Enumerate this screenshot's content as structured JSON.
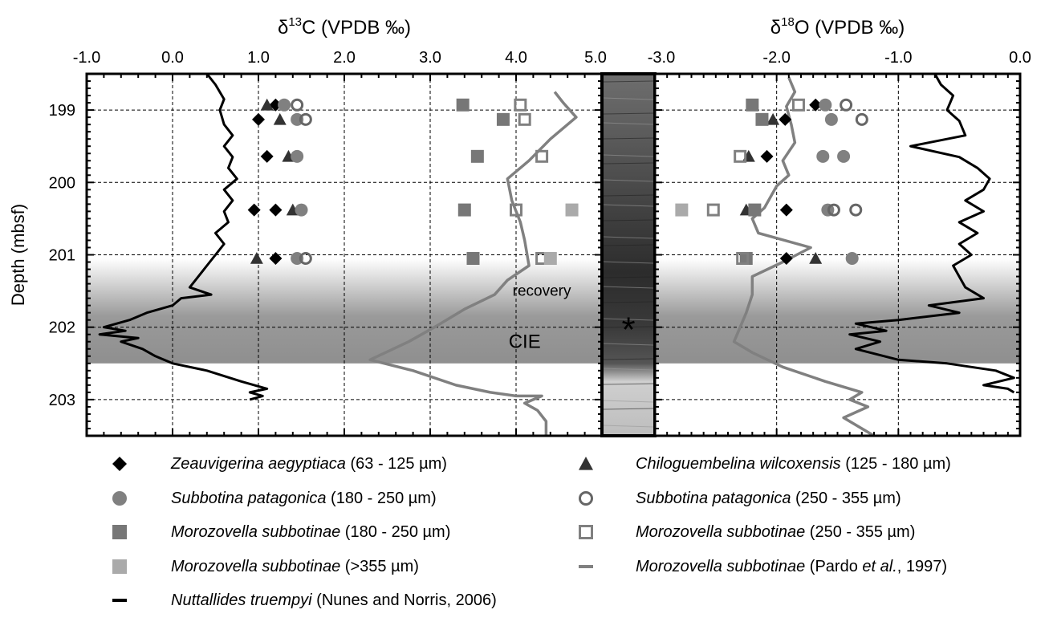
{
  "chart_data": [
    {
      "type": "scatter",
      "panel": "d13C",
      "title": "δ¹³C (VPDB ‰)",
      "title_main": "δ",
      "title_sup": "13",
      "title_rest": "C (VPDB ‰)",
      "ylabel": "Depth (mbsf)",
      "xlim": [
        -1.0,
        5.0
      ],
      "ylim": [
        198.5,
        203.5
      ],
      "x_ticks": [
        -1.0,
        0.0,
        1.0,
        2.0,
        3.0,
        4.0,
        5.0
      ],
      "x_tick_labels": [
        "-1.0",
        "0.0",
        "1.0",
        "2.0",
        "3.0",
        "4.0",
        "5.0"
      ],
      "y_ticks": [
        199,
        200,
        201,
        202,
        203
      ],
      "y_tick_labels": [
        "199",
        "200",
        "201",
        "202",
        "203"
      ],
      "grid": true,
      "annotations": [
        {
          "text": "recovery",
          "x": 4.3,
          "y": 201.5
        },
        {
          "text": "CIE",
          "x": 4.1,
          "y": 202.2
        }
      ],
      "series": [
        {
          "name": "Zeauvigerina aegyptiaca (63 - 125 µm)",
          "marker": "diamond",
          "color": "#000000",
          "points": [
            [
              1.2,
              198.93
            ],
            [
              1.0,
              199.13
            ],
            [
              1.1,
              199.64
            ],
            [
              0.95,
              200.38
            ],
            [
              1.2,
              200.38
            ],
            [
              1.2,
              201.05
            ]
          ]
        },
        {
          "name": "Chiloguembelina wilcoxensis (125 - 180 µm)",
          "marker": "triangle",
          "color": "#333333",
          "points": [
            [
              1.1,
              198.93
            ],
            [
              1.25,
              199.13
            ],
            [
              1.35,
              199.64
            ],
            [
              1.4,
              200.38
            ],
            [
              0.98,
              201.05
            ]
          ]
        },
        {
          "name": "Subbotina patagonica (180 - 250 µm)",
          "marker": "circle",
          "color": "#808080",
          "points": [
            [
              1.3,
              198.93
            ],
            [
              1.45,
              199.13
            ],
            [
              1.45,
              199.64
            ],
            [
              1.5,
              200.38
            ],
            [
              1.45,
              201.05
            ]
          ]
        },
        {
          "name": "Subbotina patagonica (250 - 355 µm)",
          "marker": "circle-open",
          "color": "#666666",
          "points": [
            [
              1.45,
              198.93
            ],
            [
              1.55,
              199.13
            ],
            [
              1.55,
              201.05
            ]
          ]
        },
        {
          "name": "Morozovella subbotinae (180 - 250 µm)",
          "marker": "square",
          "color": "#777777",
          "points": [
            [
              3.38,
              198.93
            ],
            [
              3.85,
              199.13
            ],
            [
              3.55,
              199.64
            ],
            [
              3.4,
              200.38
            ],
            [
              3.5,
              201.05
            ]
          ]
        },
        {
          "name": "Morozovella subbotinae (250 - 355 µm)",
          "marker": "square-open",
          "color": "#808080",
          "points": [
            [
              4.05,
              198.93
            ],
            [
              4.1,
              199.13
            ],
            [
              4.3,
              199.64
            ],
            [
              4.0,
              200.38
            ],
            [
              4.3,
              201.05
            ]
          ]
        },
        {
          "name": "Morozovella subbotinae (>355 µm)",
          "marker": "square",
          "color": "#aaaaaa",
          "points": [
            [
              4.65,
              200.38
            ],
            [
              4.4,
              201.05
            ]
          ]
        },
        {
          "name": "Morozovella subbotinae (Pardo et al., 1997)",
          "marker": "line",
          "color": "#808080",
          "points": [
            [
              4.45,
              198.75
            ],
            [
              4.55,
              198.9
            ],
            [
              4.7,
              199.1
            ],
            [
              4.4,
              199.4
            ],
            [
              4.15,
              199.7
            ],
            [
              3.9,
              199.95
            ],
            [
              3.95,
              200.25
            ],
            [
              4.05,
              200.55
            ],
            [
              4.1,
              200.8
            ],
            [
              4.15,
              201.15
            ],
            [
              3.9,
              201.35
            ],
            [
              3.75,
              201.55
            ],
            [
              3.4,
              201.75
            ],
            [
              3.05,
              202.0
            ],
            [
              2.75,
              202.2
            ],
            [
              2.3,
              202.45
            ],
            [
              2.8,
              202.6
            ],
            [
              3.3,
              202.8
            ],
            [
              3.7,
              202.9
            ],
            [
              4.0,
              202.95
            ],
            [
              4.3,
              202.95
            ],
            [
              4.1,
              203.05
            ],
            [
              4.25,
              203.15
            ],
            [
              4.35,
              203.3
            ],
            [
              4.35,
              203.5
            ]
          ]
        },
        {
          "name": "Nuttallides truempyi (Nunes and Norris, 2006)",
          "marker": "line",
          "color": "#000000",
          "points": [
            [
              0.4,
              198.5
            ],
            [
              0.5,
              198.65
            ],
            [
              0.6,
              198.85
            ],
            [
              0.55,
              199.0
            ],
            [
              0.6,
              199.2
            ],
            [
              0.7,
              199.35
            ],
            [
              0.6,
              199.5
            ],
            [
              0.7,
              199.65
            ],
            [
              0.65,
              199.8
            ],
            [
              0.75,
              199.95
            ],
            [
              0.6,
              200.1
            ],
            [
              0.7,
              200.25
            ],
            [
              0.6,
              200.4
            ],
            [
              0.65,
              200.55
            ],
            [
              0.5,
              200.7
            ],
            [
              0.6,
              200.85
            ],
            [
              0.5,
              201.0
            ],
            [
              0.4,
              201.15
            ],
            [
              0.3,
              201.3
            ],
            [
              0.2,
              201.45
            ],
            [
              0.45,
              201.55
            ],
            [
              0.1,
              201.6
            ],
            [
              0.0,
              201.7
            ],
            [
              -0.3,
              201.8
            ],
            [
              -0.5,
              201.9
            ],
            [
              -0.8,
              202.0
            ],
            [
              -0.55,
              202.05
            ],
            [
              -0.85,
              202.1
            ],
            [
              -0.4,
              202.15
            ],
            [
              -0.6,
              202.2
            ],
            [
              -0.35,
              202.3
            ],
            [
              -0.2,
              202.4
            ],
            [
              0.0,
              202.5
            ],
            [
              0.4,
              202.6
            ],
            [
              0.8,
              202.75
            ],
            [
              1.1,
              202.85
            ],
            [
              0.9,
              202.9
            ],
            [
              1.05,
              202.95
            ],
            [
              0.9,
              203.0
            ]
          ]
        }
      ]
    },
    {
      "type": "scatter",
      "panel": "d18O",
      "title": "δ¹⁸O (VPDB ‰)",
      "title_main": "δ",
      "title_sup": "18",
      "title_rest": "O (VPDB ‰)",
      "xlim": [
        -3.0,
        0.0
      ],
      "ylim": [
        198.5,
        203.5
      ],
      "x_ticks": [
        -3.0,
        -2.0,
        -1.0,
        0.0
      ],
      "x_tick_labels": [
        "-3.0",
        "-2.0",
        "-1.0",
        "0.0"
      ],
      "grid": true,
      "annotations": [
        {
          "text": "*",
          "x": -3.35,
          "y": 202.0
        }
      ],
      "series": [
        {
          "name": "Zeauvigerina aegyptiaca (63 - 125 µm)",
          "marker": "diamond",
          "color": "#000000",
          "points": [
            [
              -1.68,
              198.93
            ],
            [
              -1.93,
              199.13
            ],
            [
              -2.08,
              199.64
            ],
            [
              -1.92,
              200.38
            ],
            [
              -1.92,
              201.05
            ]
          ]
        },
        {
          "name": "Chiloguembelina wilcoxensis (125 - 180 µm)",
          "marker": "triangle",
          "color": "#333333",
          "points": [
            [
              -2.03,
              199.13
            ],
            [
              -2.23,
              199.64
            ],
            [
              -2.25,
              200.38
            ],
            [
              -1.68,
              201.05
            ]
          ]
        },
        {
          "name": "Subbotina patagonica (180 - 250 µm)",
          "marker": "circle",
          "color": "#808080",
          "points": [
            [
              -1.6,
              198.93
            ],
            [
              -1.55,
              199.13
            ],
            [
              -1.62,
              199.64
            ],
            [
              -1.45,
              199.64
            ],
            [
              -1.58,
              200.38
            ],
            [
              -1.38,
              201.05
            ]
          ]
        },
        {
          "name": "Subbotina patagonica (250 - 355 µm)",
          "marker": "circle-open",
          "color": "#666666",
          "points": [
            [
              -1.43,
              198.93
            ],
            [
              -1.3,
              199.13
            ],
            [
              -1.53,
              200.38
            ],
            [
              -1.35,
              200.38
            ]
          ]
        },
        {
          "name": "Morozovella subbotinae (180 - 250 µm)",
          "marker": "square",
          "color": "#777777",
          "points": [
            [
              -2.2,
              198.93
            ],
            [
              -2.12,
              199.13
            ],
            [
              -2.18,
              200.38
            ],
            [
              -2.25,
              201.05
            ]
          ]
        },
        {
          "name": "Morozovella subbotinae (250 - 355 µm)",
          "marker": "square-open",
          "color": "#808080",
          "points": [
            [
              -1.82,
              198.93
            ],
            [
              -2.3,
              199.64
            ],
            [
              -2.52,
              200.38
            ],
            [
              -2.28,
              201.05
            ]
          ]
        },
        {
          "name": "Morozovella subbotinae (>355 µm)",
          "marker": "square",
          "color": "#aaaaaa",
          "points": [
            [
              -2.78,
              200.38
            ]
          ]
        },
        {
          "name": "Morozovella subbotinae (Pardo et al., 1997)",
          "marker": "line",
          "color": "#808080",
          "points": [
            [
              -1.9,
              198.55
            ],
            [
              -1.85,
              198.75
            ],
            [
              -1.92,
              198.95
            ],
            [
              -1.88,
              199.2
            ],
            [
              -1.85,
              199.45
            ],
            [
              -1.95,
              199.7
            ],
            [
              -1.9,
              199.9
            ],
            [
              -2.0,
              200.05
            ],
            [
              -2.05,
              200.2
            ],
            [
              -2.1,
              200.35
            ],
            [
              -2.2,
              200.5
            ],
            [
              -2.15,
              200.7
            ],
            [
              -1.72,
              200.9
            ],
            [
              -1.95,
              201.1
            ],
            [
              -2.2,
              201.3
            ],
            [
              -2.2,
              201.55
            ],
            [
              -2.25,
              201.8
            ],
            [
              -2.3,
              202.0
            ],
            [
              -2.35,
              202.2
            ],
            [
              -2.2,
              202.35
            ],
            [
              -1.95,
              202.55
            ],
            [
              -1.6,
              202.75
            ],
            [
              -1.3,
              202.9
            ],
            [
              -1.4,
              203.0
            ],
            [
              -1.25,
              203.1
            ],
            [
              -1.45,
              203.25
            ],
            [
              -1.2,
              203.5
            ]
          ]
        },
        {
          "name": "Nuttallides truempyi (Nunes and Norris, 2006)",
          "marker": "line",
          "color": "#000000",
          "points": [
            [
              -0.7,
              198.5
            ],
            [
              -0.65,
              198.65
            ],
            [
              -0.55,
              198.8
            ],
            [
              -0.6,
              199.0
            ],
            [
              -0.5,
              199.15
            ],
            [
              -0.45,
              199.35
            ],
            [
              -0.9,
              199.5
            ],
            [
              -0.5,
              199.65
            ],
            [
              -0.35,
              199.8
            ],
            [
              -0.25,
              199.95
            ],
            [
              -0.3,
              200.1
            ],
            [
              -0.45,
              200.25
            ],
            [
              -0.3,
              200.4
            ],
            [
              -0.5,
              200.55
            ],
            [
              -0.35,
              200.7
            ],
            [
              -0.5,
              200.85
            ],
            [
              -0.4,
              201.0
            ],
            [
              -0.55,
              201.15
            ],
            [
              -0.5,
              201.3
            ],
            [
              -0.45,
              201.45
            ],
            [
              -0.3,
              201.6
            ],
            [
              -0.75,
              201.7
            ],
            [
              -0.5,
              201.8
            ],
            [
              -1.0,
              201.9
            ],
            [
              -1.35,
              201.95
            ],
            [
              -1.1,
              202.05
            ],
            [
              -1.4,
              202.1
            ],
            [
              -1.15,
              202.2
            ],
            [
              -1.35,
              202.3
            ],
            [
              -1.0,
              202.45
            ],
            [
              -0.6,
              202.5
            ],
            [
              -0.2,
              202.6
            ],
            [
              -0.05,
              202.7
            ],
            [
              -0.3,
              202.8
            ],
            [
              -0.1,
              202.85
            ],
            [
              -0.05,
              202.9
            ]
          ]
        }
      ]
    }
  ],
  "core_column": {
    "label": "*"
  },
  "legend": [
    {
      "marker": "diamond",
      "color": "#000000",
      "italic": "Zeauvigerina aegyptiaca",
      "rest": " (63 - 125 µm)"
    },
    {
      "marker": "triangle",
      "color": "#333333",
      "italic": "Chiloguembelina wilcoxensis",
      "rest": " (125 - 180 µm)"
    },
    {
      "marker": "circle",
      "color": "#808080",
      "italic": "Subbotina patagonica",
      "rest": " (180 - 250 µm)"
    },
    {
      "marker": "circle-open",
      "color": "#666666",
      "italic": "Subbotina patagonica",
      "rest": " (250 - 355 µm)"
    },
    {
      "marker": "square",
      "color": "#777777",
      "italic": "Morozovella subbotinae",
      "rest": " (180 - 250 µm)"
    },
    {
      "marker": "square-open",
      "color": "#808080",
      "italic": "Morozovella subbotinae",
      "rest": " (250 - 355 µm)"
    },
    {
      "marker": "square",
      "color": "#aaaaaa",
      "italic": "Morozovella subbotinae",
      "rest": " (>355 µm)"
    },
    {
      "marker": "dash",
      "color": "#808080",
      "italic": "Morozovella subbotinae",
      "rest": " (Pardo ",
      "italic2": "et al.",
      "rest2": ", 1997)"
    },
    {
      "marker": "dash",
      "color": "#000000",
      "italic": "Nuttallides truempyi",
      "rest": " (Nunes and Norris, 2006)"
    }
  ]
}
